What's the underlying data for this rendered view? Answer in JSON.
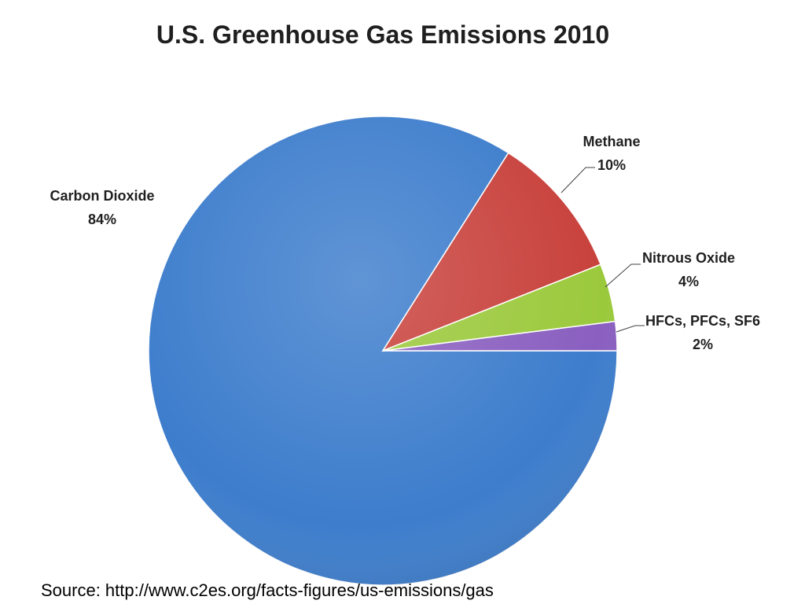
{
  "chart_data": {
    "type": "pie",
    "title": "U.S. Greenhouse Gas Emissions 2010",
    "slices": [
      {
        "name": "Carbon Dioxide",
        "value": 84,
        "label": "84%",
        "color": "#3d7dcc"
      },
      {
        "name": "Methane",
        "value": 10,
        "label": "10%",
        "color": "#c8413c"
      },
      {
        "name": "Nitrous Oxide",
        "value": 4,
        "label": "4%",
        "color": "#9bc93c"
      },
      {
        "name": "HFCs, PFCs, SF6",
        "value": 2,
        "label": "2%",
        "color": "#8a5fc0"
      }
    ],
    "legend": "none",
    "labels": "outside"
  },
  "source": "Source: http://www.c2es.org/facts-figures/us-emissions/gas"
}
